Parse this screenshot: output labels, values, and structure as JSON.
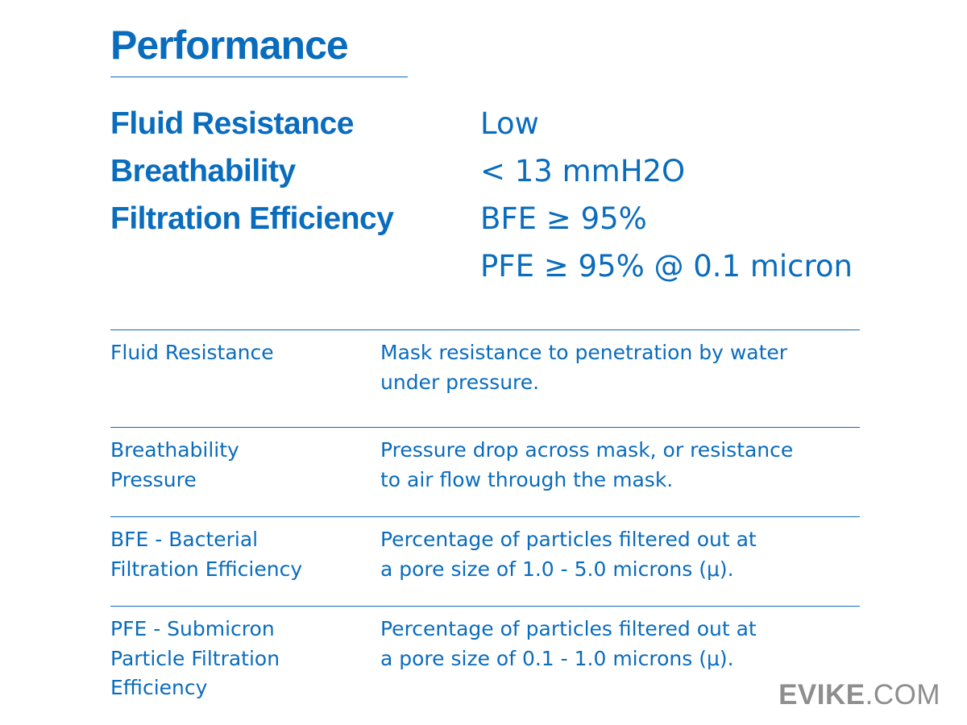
{
  "title": "Performance",
  "specs": [
    {
      "label": "Fluid Resistance",
      "value": "Low"
    },
    {
      "label": "Breathability",
      "value": "< 13 mmH2O"
    },
    {
      "label": "Filtration Efficiency",
      "value": "BFE ≥ 95%"
    },
    {
      "label": "",
      "value": "PFE ≥ 95% @ 0.1 micron"
    }
  ],
  "glossary": [
    {
      "term": [
        "Fluid Resistance"
      ],
      "definition": [
        "Mask resistance to penetration by water",
        "under pressure."
      ]
    },
    {
      "term": [
        "Breathability",
        "Pressure"
      ],
      "definition": [
        "Pressure drop across mask, or resistance",
        "to air flow through the mask."
      ]
    },
    {
      "term": [
        "BFE - Bacterial",
        "Filtration Efficiency"
      ],
      "definition": [
        "Percentage of particles filtered out at",
        "a pore size of 1.0 - 5.0 microns (μ)."
      ]
    },
    {
      "term": [
        "PFE - Submicron",
        "Particle Filtration",
        "Efficiency"
      ],
      "definition": [
        "Percentage of particles filtered out at",
        "a pore size of 0.1 - 1.0 microns (μ)."
      ]
    }
  ],
  "watermark": {
    "brand": "EVIKE",
    "suffix": ".COM"
  },
  "colors": {
    "accent": "#0a6cbd",
    "watermark": "#8e8e8e"
  }
}
